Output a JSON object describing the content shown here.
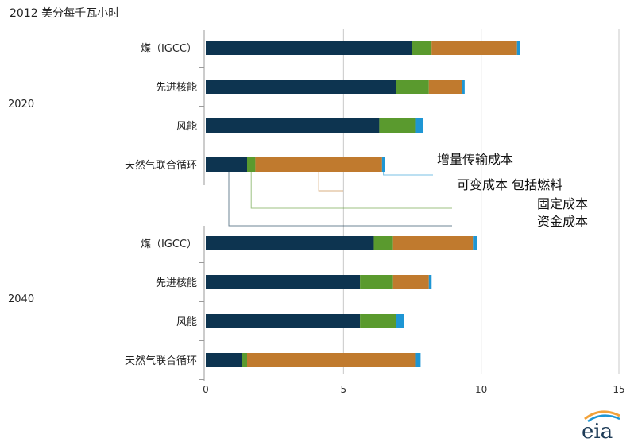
{
  "unit_label": "2012 美分每千瓦小时",
  "logo_text": "eia",
  "chart_data": {
    "type": "bar",
    "orientation": "horizontal",
    "stacked": true,
    "unit": "2012 美分每千瓦小时",
    "xlim": [
      0,
      15
    ],
    "x_ticks": [
      0,
      5,
      10,
      15
    ],
    "grid": true,
    "components": [
      {
        "name": "资金成本",
        "color": "#0d3450"
      },
      {
        "name": "固定成本",
        "color": "#5a9a2e"
      },
      {
        "name": "可变成本 包括燃料",
        "color": "#c07a2e"
      },
      {
        "name": "增量传输成本",
        "color": "#1e96d4"
      }
    ],
    "groups": [
      {
        "year": "2020",
        "bars": [
          {
            "category": "煤（IGCC）",
            "values": [
              7.5,
              0.7,
              3.1,
              0.1
            ]
          },
          {
            "category": "先进核能",
            "values": [
              6.9,
              1.2,
              1.2,
              0.1
            ]
          },
          {
            "category": "风能",
            "values": [
              6.3,
              1.3,
              0,
              0.3
            ]
          },
          {
            "category": "天然气联合循环",
            "values": [
              1.5,
              0.3,
              4.6,
              0.1
            ]
          }
        ]
      },
      {
        "year": "2040",
        "bars": [
          {
            "category": "煤（IGCC）",
            "values": [
              6.1,
              0.7,
              2.9,
              0.15
            ]
          },
          {
            "category": "先进核能",
            "values": [
              5.6,
              1.2,
              1.3,
              0.1
            ]
          },
          {
            "category": "风能",
            "values": [
              5.6,
              1.3,
              0,
              0.3
            ]
          },
          {
            "category": "天然气联合循环",
            "values": [
              1.3,
              0.2,
              6.1,
              0.2
            ]
          }
        ]
      }
    ],
    "annotations": [
      {
        "text": "增量传输成本",
        "component": 3
      },
      {
        "text": "可变成本 包括燃料",
        "component": 2
      },
      {
        "text": "固定成本",
        "component": 1
      },
      {
        "text": "资金成本",
        "component": 0
      }
    ]
  }
}
